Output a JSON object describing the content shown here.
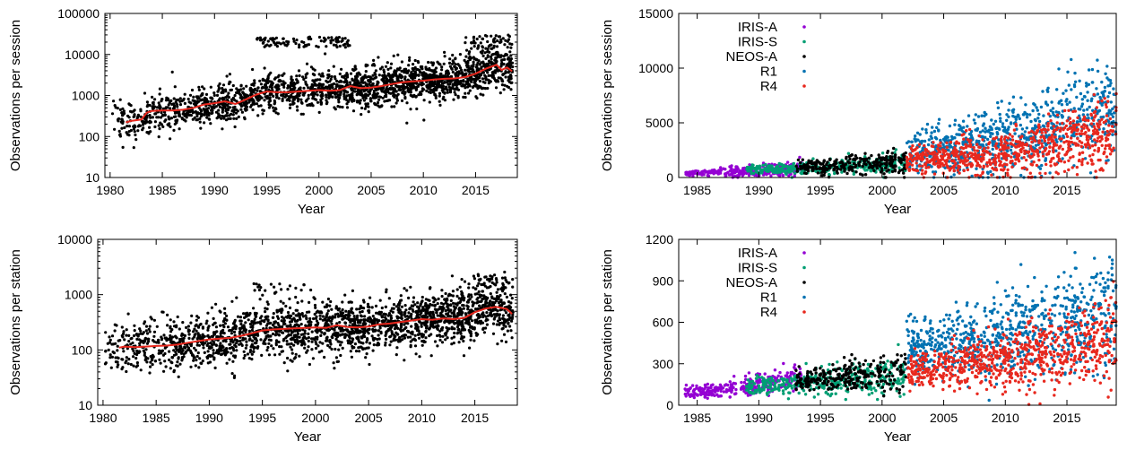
{
  "chart_data": [
    {
      "id": "tl",
      "type": "scatter",
      "xlabel": "Year",
      "ylabel": "Observations per session",
      "yscale": "log",
      "xlim": [
        1979.5,
        2019
      ],
      "ylim": [
        10,
        100000
      ],
      "xticks": [
        1980,
        1985,
        1990,
        1995,
        2000,
        2005,
        2010,
        2015
      ],
      "yticks": [
        10,
        100,
        1000,
        10000,
        100000
      ],
      "series": [
        {
          "color": "#000000",
          "kind": "scatter",
          "description_values": "dense cloud of per-session observation counts"
        },
        {
          "color": "#e8281e",
          "kind": "line",
          "x": [
            1981.5,
            1982,
            1983,
            1983.5,
            1984,
            1985,
            1986,
            1987,
            1988,
            1989,
            1990,
            1991,
            1992,
            1993,
            1994,
            1995,
            1996,
            1997,
            1998,
            1999,
            2000,
            2001,
            2002,
            2003,
            2004,
            2005,
            2006,
            2007,
            2008,
            2009,
            2010,
            2011,
            2012,
            2013,
            2014,
            2015,
            2016,
            2017,
            2017.5,
            2018,
            2018.5
          ],
          "y": [
            220,
            240,
            260,
            380,
            420,
            430,
            430,
            450,
            500,
            600,
            650,
            720,
            620,
            800,
            1050,
            1250,
            1200,
            1200,
            1250,
            1300,
            1350,
            1300,
            1350,
            1700,
            1500,
            1550,
            1700,
            1900,
            2100,
            2200,
            2300,
            2450,
            2550,
            2600,
            2800,
            3400,
            4500,
            5600,
            4200,
            4800,
            3900
          ]
        }
      ],
      "scatter_seed": {
        "start": 1980.5,
        "end": 2018.5
      }
    },
    {
      "id": "tr",
      "type": "scatter",
      "xlabel": "Year",
      "ylabel": "Observations per session",
      "yscale": "linear",
      "xlim": [
        1983.5,
        2019
      ],
      "ylim": [
        0,
        15000
      ],
      "xticks": [
        1985,
        1990,
        1995,
        2000,
        2005,
        2010,
        2015
      ],
      "yticks": [
        0,
        5000,
        10000,
        15000
      ],
      "legend": "top-left",
      "series": [
        {
          "name": "IRIS-A",
          "color": "#9400d3",
          "x_range": [
            1984,
            1993.5
          ],
          "y_mean_start": 400,
          "y_mean_end": 900,
          "spread": 250
        },
        {
          "name": "IRIS-S",
          "color": "#009e73",
          "x_range": [
            1989,
            2002
          ],
          "y_mean_start": 700,
          "y_mean_end": 1300,
          "spread": 300
        },
        {
          "name": "NEOS-A",
          "color": "#000000",
          "x_range": [
            1993,
            2002
          ],
          "y_mean_start": 1000,
          "y_mean_end": 1500,
          "spread": 450
        },
        {
          "name": "R1",
          "color": "#0072b2",
          "x_range": [
            2002,
            2019
          ],
          "y_mean_start": 2300,
          "y_mean_end": 6200,
          "spread": 1600
        },
        {
          "name": "R4",
          "color": "#e8281e",
          "x_range": [
            2002,
            2019
          ],
          "y_mean_start": 1500,
          "y_mean_end": 4200,
          "spread": 1100
        }
      ]
    },
    {
      "id": "bl",
      "type": "scatter",
      "xlabel": "Year",
      "ylabel": "Observations per station",
      "yscale": "log",
      "xlim": [
        1979.5,
        2019
      ],
      "ylim": [
        10,
        10000
      ],
      "xticks": [
        1980,
        1985,
        1990,
        1995,
        2000,
        2005,
        2010,
        2015
      ],
      "yticks": [
        10,
        100,
        1000,
        10000
      ],
      "series": [
        {
          "color": "#000000",
          "kind": "scatter"
        },
        {
          "color": "#e8281e",
          "kind": "line",
          "x": [
            1981.5,
            1982,
            1983,
            1984,
            1985,
            1986,
            1987,
            1988,
            1989,
            1990,
            1991,
            1992,
            1993,
            1994,
            1995,
            1996,
            1997,
            1998,
            1999,
            2000,
            2001,
            2002,
            2003,
            2004,
            2005,
            2006,
            2007,
            2008,
            2009,
            2010,
            2011,
            2012,
            2013,
            2014,
            2015,
            2016,
            2017,
            2018,
            2018.5
          ],
          "y": [
            110,
            115,
            112,
            115,
            118,
            120,
            125,
            135,
            145,
            155,
            160,
            165,
            180,
            200,
            225,
            235,
            240,
            245,
            250,
            255,
            250,
            280,
            260,
            255,
            265,
            290,
            300,
            320,
            340,
            360,
            350,
            370,
            360,
            380,
            480,
            560,
            600,
            550,
            450
          ]
        }
      ]
    },
    {
      "id": "br",
      "type": "scatter",
      "xlabel": "Year",
      "ylabel": "Observations per station",
      "yscale": "linear",
      "xlim": [
        1983.5,
        2019
      ],
      "ylim": [
        0,
        1200
      ],
      "xticks": [
        1985,
        1990,
        1995,
        2000,
        2005,
        2010,
        2015
      ],
      "yticks": [
        0,
        300,
        600,
        900,
        1200
      ],
      "legend": "top-left",
      "series": [
        {
          "name": "IRIS-A",
          "color": "#9400d3",
          "x_range": [
            1984,
            1993.5
          ],
          "y_mean_start": 95,
          "y_mean_end": 220,
          "spread": 35
        },
        {
          "name": "IRIS-S",
          "color": "#009e73",
          "x_range": [
            1989,
            2002
          ],
          "y_mean_start": 140,
          "y_mean_end": 230,
          "spread": 50
        },
        {
          "name": "NEOS-A",
          "color": "#000000",
          "x_range": [
            1993,
            2002
          ],
          "y_mean_start": 190,
          "y_mean_end": 260,
          "spread": 55
        },
        {
          "name": "R1",
          "color": "#0072b2",
          "x_range": [
            2002,
            2019
          ],
          "y_mean_start": 420,
          "y_mean_end": 700,
          "spread": 150
        },
        {
          "name": "R4",
          "color": "#e8281e",
          "x_range": [
            2002,
            2019
          ],
          "y_mean_start": 260,
          "y_mean_end": 500,
          "spread": 110
        }
      ]
    }
  ]
}
